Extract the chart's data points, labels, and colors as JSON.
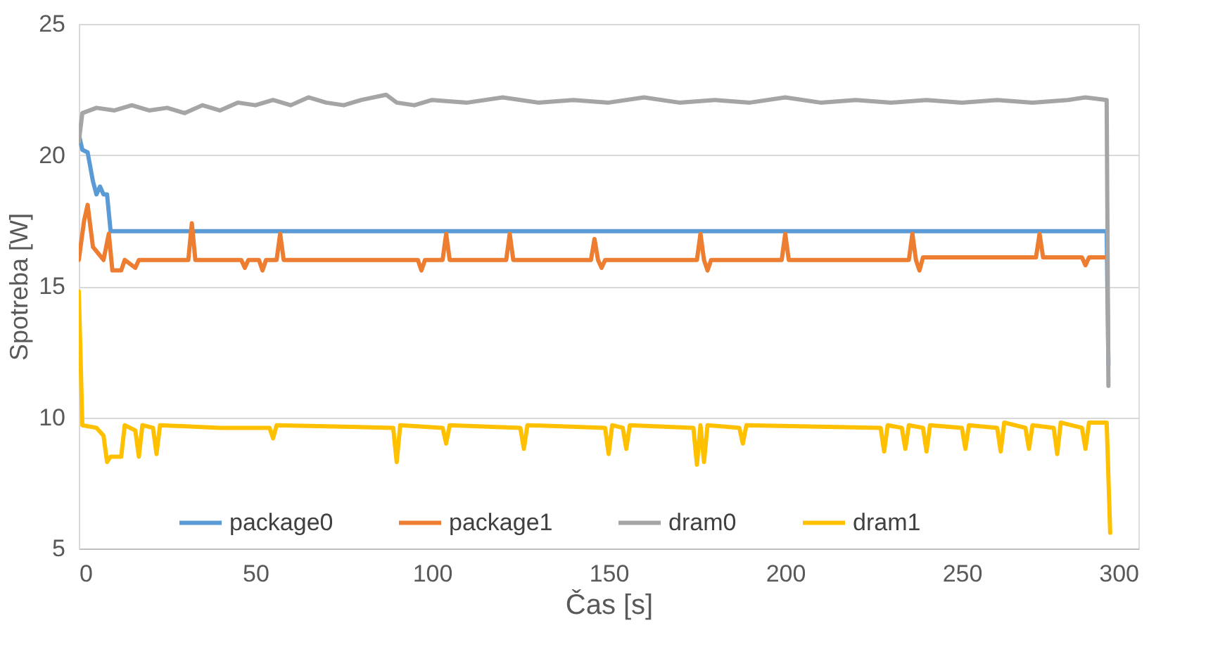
{
  "chart_data": {
    "type": "line",
    "xlabel": "Čas [s]",
    "ylabel": "Spotreba [W]",
    "xlim": [
      0,
      300
    ],
    "xticks": [
      0,
      50,
      100,
      150,
      200,
      250,
      300
    ],
    "ylim": [
      5,
      25
    ],
    "yticks": [
      5,
      10,
      15,
      20,
      25
    ],
    "grid": "y",
    "legend": "bottom",
    "marker": "none",
    "line_style": "solid",
    "series": [
      {
        "name": "package0",
        "color": "#5b9bd5",
        "x": [
          0,
          1,
          2.5,
          4,
          5,
          6,
          7,
          8,
          9,
          20,
          50,
          100,
          150,
          200,
          250,
          291,
          291.5
        ],
        "values": [
          20.8,
          20.2,
          20.1,
          19,
          18.5,
          18.8,
          18.5,
          18.5,
          17.1,
          17.1,
          17.1,
          17.1,
          17.1,
          17.1,
          17.1,
          17.1,
          12
        ]
      },
      {
        "name": "package1",
        "color": "#ed7d31",
        "x": [
          0,
          1.5,
          2.5,
          4,
          7,
          8.5,
          9.5,
          12,
          13,
          16,
          17,
          31,
          32,
          33,
          46,
          47,
          48,
          51,
          52,
          53,
          56,
          57,
          58,
          96,
          97,
          98,
          103,
          104,
          105,
          121,
          122,
          123,
          145,
          146,
          147,
          148,
          149,
          175,
          176,
          177,
          178,
          179,
          199,
          200,
          201,
          235,
          236,
          237,
          238,
          239,
          271,
          272,
          273,
          284,
          285,
          286,
          291
        ],
        "values": [
          16,
          17.5,
          18.1,
          16.5,
          16,
          17,
          15.6,
          15.6,
          16,
          15.7,
          16,
          16,
          17.4,
          16,
          16,
          15.7,
          16,
          16,
          15.6,
          16,
          16,
          17,
          16,
          16,
          15.6,
          16,
          16,
          17,
          16,
          16,
          17,
          16,
          16,
          16.8,
          16,
          15.7,
          16,
          16,
          17,
          16,
          15.6,
          16,
          16,
          17,
          16,
          16,
          17,
          16,
          15.6,
          16.1,
          16.1,
          17,
          16.1,
          16.1,
          15.8,
          16.1,
          16.1
        ]
      },
      {
        "name": "dram0",
        "color": "#a5a5a5",
        "x": [
          0,
          1,
          5,
          10,
          15,
          20,
          25,
          30,
          35,
          40,
          45,
          50,
          55,
          60,
          65,
          70,
          75,
          80,
          87,
          90,
          95,
          100,
          110,
          120,
          130,
          140,
          150,
          160,
          170,
          180,
          190,
          200,
          210,
          220,
          230,
          240,
          250,
          260,
          270,
          280,
          285,
          291,
          291.5
        ],
        "values": [
          20.5,
          21.6,
          21.8,
          21.7,
          21.9,
          21.7,
          21.8,
          21.6,
          21.9,
          21.7,
          22,
          21.9,
          22.1,
          21.9,
          22.2,
          22,
          21.9,
          22.1,
          22.3,
          22,
          21.9,
          22.1,
          22,
          22.2,
          22,
          22.1,
          22,
          22.2,
          22,
          22.1,
          22,
          22.2,
          22,
          22.1,
          22,
          22.1,
          22,
          22.1,
          22,
          22.1,
          22.2,
          22.1,
          11.2
        ]
      },
      {
        "name": "dram1",
        "color": "#ffc000",
        "x": [
          0,
          1,
          5,
          7,
          8,
          9,
          12,
          13,
          16,
          17,
          18,
          21,
          22,
          23,
          40,
          54,
          55,
          56,
          89,
          90,
          91,
          103,
          104,
          105,
          125,
          126,
          127,
          149,
          150,
          151,
          154,
          155,
          156,
          174,
          175,
          176,
          177,
          178,
          187,
          188,
          189,
          227,
          228,
          229,
          233,
          234,
          235,
          239,
          240,
          241,
          250,
          251,
          252,
          260,
          261,
          262,
          268,
          269,
          270,
          276,
          277,
          278,
          284,
          285,
          286,
          291,
          292
        ],
        "values": [
          14.8,
          9.7,
          9.6,
          9.3,
          8.3,
          8.5,
          8.5,
          9.7,
          9.5,
          8.5,
          9.7,
          9.6,
          8.6,
          9.7,
          9.6,
          9.6,
          9.2,
          9.7,
          9.6,
          8.3,
          9.7,
          9.6,
          9,
          9.7,
          9.6,
          8.8,
          9.7,
          9.6,
          8.6,
          9.7,
          9.6,
          8.8,
          9.7,
          9.6,
          8.2,
          9.7,
          8.3,
          9.7,
          9.6,
          9,
          9.7,
          9.6,
          8.7,
          9.7,
          9.6,
          8.8,
          9.7,
          9.6,
          8.7,
          9.7,
          9.6,
          8.8,
          9.7,
          9.6,
          8.7,
          9.8,
          9.6,
          8.8,
          9.7,
          9.6,
          8.6,
          9.8,
          9.6,
          8.8,
          9.8,
          9.8,
          5.6
        ]
      }
    ]
  }
}
